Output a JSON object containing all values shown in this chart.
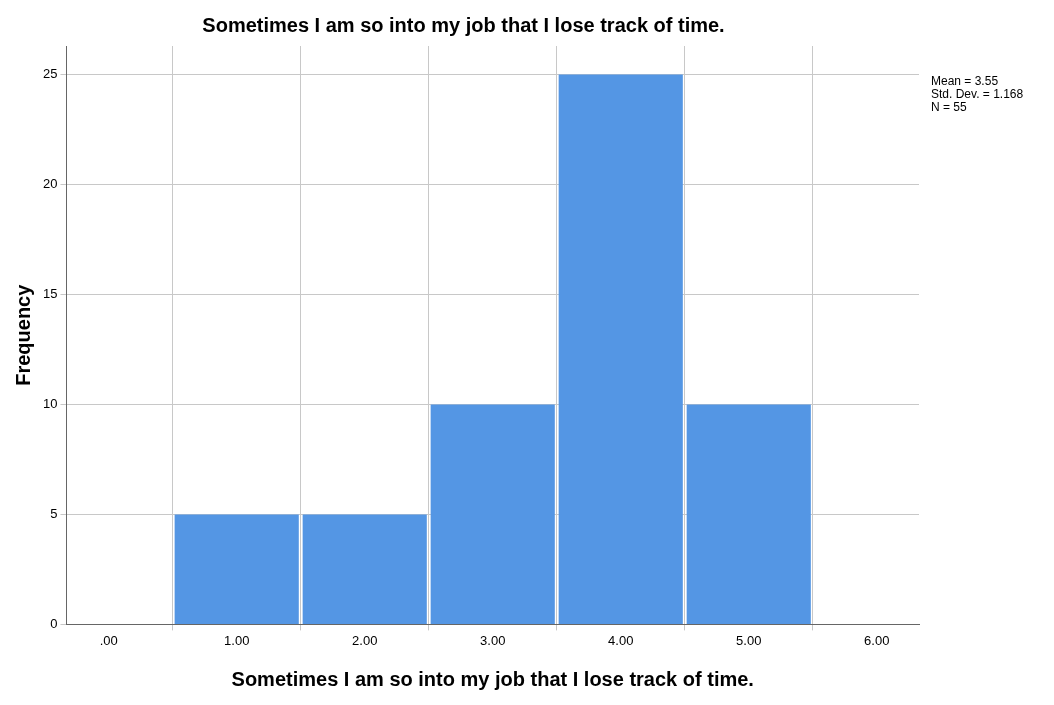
{
  "chart_data": {
    "type": "histogram",
    "title": "Sometimes I am so into my job that I lose track of time.",
    "xlabel": "Sometimes I am so into my job that I lose track of time.",
    "ylabel": "Frequency",
    "bins": [
      0.5,
      1.5,
      2.5,
      3.5,
      4.5,
      5.5
    ],
    "values": [
      5,
      5,
      10,
      25,
      10
    ],
    "color": "#5496e4",
    "xlim": [
      -0.33,
      6.33
    ],
    "xticks": [
      {
        "value": 0,
        "label": ".00"
      },
      {
        "value": 1,
        "label": "1.00"
      },
      {
        "value": 2,
        "label": "2.00"
      },
      {
        "value": 3,
        "label": "3.00"
      },
      {
        "value": 4,
        "label": "4.00"
      },
      {
        "value": 5,
        "label": "5.00"
      },
      {
        "value": 6,
        "label": "6.00"
      }
    ],
    "ylim": [
      0,
      26.3
    ],
    "yticks": [
      0,
      5,
      10,
      15,
      20,
      25
    ],
    "grid": true,
    "annotations": [
      "Mean = 3.55",
      "Std. Dev. = 1.168",
      "N = 55"
    ]
  }
}
